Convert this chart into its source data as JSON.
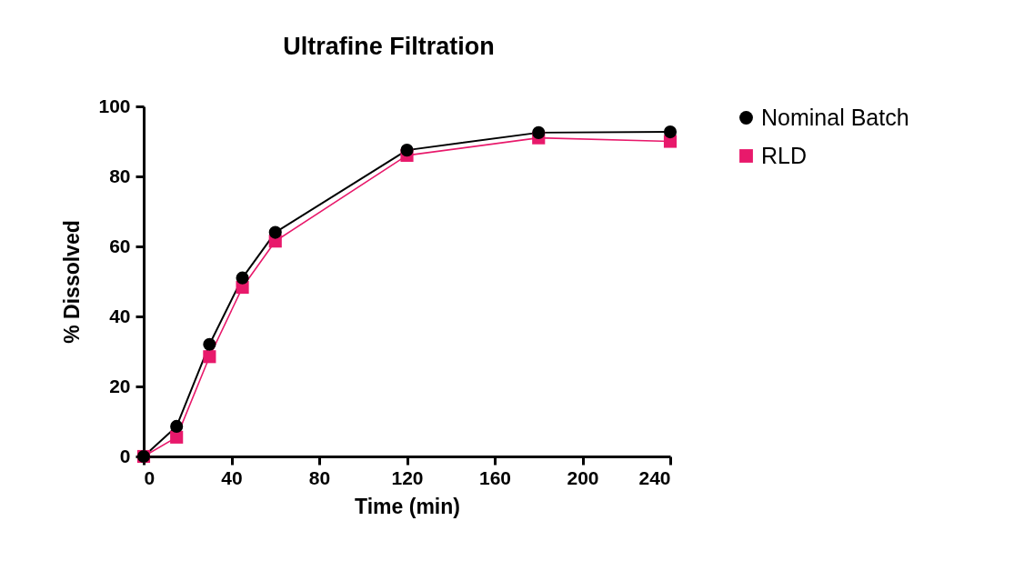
{
  "chart_data": {
    "type": "line",
    "title": "Ultrafine Filtration",
    "xlabel": "Time (min)",
    "ylabel": "% Dissolved",
    "x": [
      0,
      15,
      30,
      45,
      60,
      120,
      180,
      240
    ],
    "series": [
      {
        "name": "Nominal Batch",
        "color": "#000000",
        "marker": "circle",
        "values": [
          0,
          8.6,
          32,
          51,
          64,
          87.5,
          92.5,
          92.7
        ]
      },
      {
        "name": "RLD",
        "color": "#e8196b",
        "marker": "square",
        "values": [
          0,
          5.5,
          28.5,
          48.3,
          61.5,
          86,
          91,
          90
        ]
      }
    ],
    "xlim": [
      0,
      240
    ],
    "xticks": [
      0,
      40,
      80,
      120,
      160,
      200,
      240
    ],
    "ylim": [
      0,
      100
    ],
    "yticks": [
      0,
      20,
      40,
      60,
      80,
      100
    ],
    "grid": false,
    "legend": "top right"
  }
}
